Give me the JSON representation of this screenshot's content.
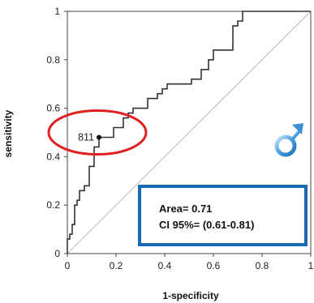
{
  "chart_data": {
    "type": "line",
    "xlabel": "1-specificity",
    "ylabel": "sensitivity",
    "xlim": [
      0,
      1
    ],
    "ylim": [
      0,
      1
    ],
    "x_ticks": [
      "0",
      "0.2",
      "0.4",
      "0.6",
      "0.8",
      "1"
    ],
    "y_ticks": [
      "0",
      "0.2",
      "0.4",
      "0.6",
      "0.8",
      "1"
    ],
    "series": [
      {
        "type": "step",
        "color": "#333333",
        "points": [
          [
            0.0,
            0.0
          ],
          [
            0.0,
            0.06
          ],
          [
            0.01,
            0.06
          ],
          [
            0.01,
            0.08
          ],
          [
            0.02,
            0.08
          ],
          [
            0.02,
            0.12
          ],
          [
            0.03,
            0.12
          ],
          [
            0.03,
            0.2
          ],
          [
            0.04,
            0.2
          ],
          [
            0.04,
            0.22
          ],
          [
            0.05,
            0.22
          ],
          [
            0.05,
            0.26
          ],
          [
            0.07,
            0.26
          ],
          [
            0.07,
            0.28
          ],
          [
            0.09,
            0.28
          ],
          [
            0.09,
            0.36
          ],
          [
            0.11,
            0.36
          ],
          [
            0.11,
            0.44
          ],
          [
            0.13,
            0.44
          ],
          [
            0.13,
            0.48
          ],
          [
            0.19,
            0.48
          ],
          [
            0.19,
            0.52
          ],
          [
            0.23,
            0.52
          ],
          [
            0.23,
            0.56
          ],
          [
            0.25,
            0.56
          ],
          [
            0.25,
            0.58
          ],
          [
            0.27,
            0.58
          ],
          [
            0.27,
            0.6
          ],
          [
            0.33,
            0.6
          ],
          [
            0.33,
            0.64
          ],
          [
            0.37,
            0.64
          ],
          [
            0.37,
            0.66
          ],
          [
            0.39,
            0.66
          ],
          [
            0.39,
            0.68
          ],
          [
            0.41,
            0.68
          ],
          [
            0.41,
            0.7
          ],
          [
            0.51,
            0.7
          ],
          [
            0.51,
            0.72
          ],
          [
            0.55,
            0.72
          ],
          [
            0.55,
            0.76
          ],
          [
            0.58,
            0.76
          ],
          [
            0.58,
            0.8
          ],
          [
            0.6,
            0.8
          ],
          [
            0.6,
            0.84
          ],
          [
            0.68,
            0.84
          ],
          [
            0.68,
            0.94
          ],
          [
            0.7,
            0.94
          ],
          [
            0.7,
            0.96
          ],
          [
            0.72,
            0.96
          ],
          [
            0.72,
            1.0
          ],
          [
            1.0,
            1.0
          ]
        ]
      }
    ],
    "reference_line": {
      "from": [
        0,
        0
      ],
      "to": [
        1,
        1
      ],
      "color": "#b8b8b8"
    },
    "marked_point": {
      "x": 0.13,
      "y": 0.48,
      "label": "811"
    },
    "highlight_ellipse_color": "#e02020",
    "annotation_box": {
      "line1": "Area= 0.71",
      "line2": "CI 95%= (0.61-0.81)",
      "border_color": "#1a6ab3"
    },
    "icon": "male-symbol-icon",
    "icon_color": "#4a9ee0",
    "grid": false
  }
}
